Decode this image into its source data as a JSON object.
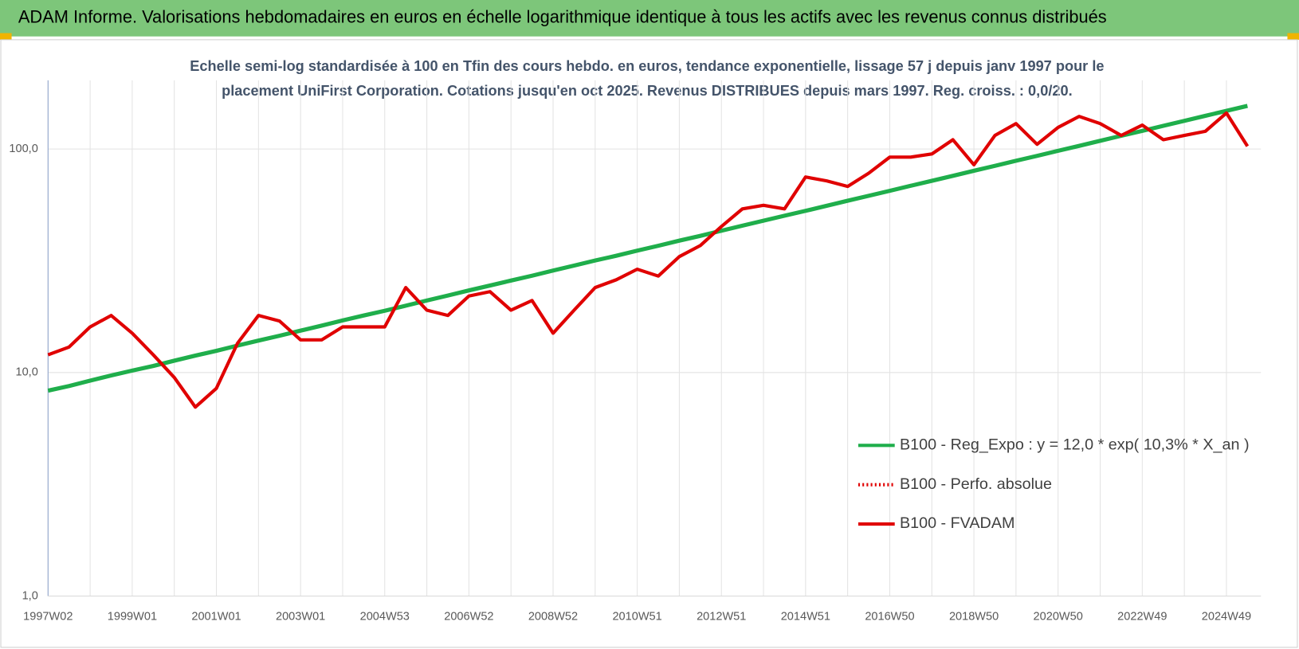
{
  "header": {
    "title": "ADAM Informe. Valorisations hebdomadaires en euros en échelle logarithmique identique à tous les actifs avec les revenus connus distribués"
  },
  "chart_data": {
    "type": "line",
    "subtitle": [
      "Echelle semi-log standardisée à 100 en Tfin des cours hebdo. en euros, tendance exponentielle, lissage 57 j depuis janv 1997 pour le",
      "placement UniFirst Corporation. Cotations jusqu'en oct 2025. Revenus DISTRIBUES depuis mars 1997.  Reg. croiss. : 0,0/20."
    ],
    "categories": [
      "1997W02",
      null,
      null,
      null,
      "1999W01",
      null,
      null,
      null,
      "2001W01",
      null,
      null,
      null,
      "2003W01",
      null,
      null,
      null,
      "2004W53",
      null,
      null,
      null,
      "2006W52",
      null,
      null,
      null,
      "2008W52",
      null,
      null,
      null,
      "2010W51",
      null,
      null,
      null,
      "2012W51",
      null,
      null,
      null,
      "2014W51",
      null,
      null,
      null,
      "2016W50",
      null,
      null,
      null,
      "2018W50",
      null,
      null,
      null,
      "2020W50",
      null,
      null,
      null,
      "2022W49",
      null,
      null,
      null,
      "2024W49",
      null
    ],
    "series": [
      {
        "name": "B100 - Reg_Expo : y = 12,0 * exp( 10,3% *  X_an )",
        "color": "#1fae4b",
        "style": "solid",
        "values": [
          8.3,
          8.7,
          9.2,
          9.7,
          10.2,
          10.7,
          11.3,
          11.9,
          12.5,
          13.2,
          13.9,
          14.6,
          15.4,
          16.2,
          17.1,
          18.0,
          18.9,
          19.9,
          21.0,
          22.1,
          23.3,
          24.5,
          25.8,
          27.1,
          28.6,
          30.1,
          31.7,
          33.3,
          35.1,
          36.9,
          38.9,
          40.9,
          43.1,
          45.4,
          47.8,
          50.3,
          52.9,
          55.7,
          58.7,
          61.8,
          65.0,
          68.5,
          72.1,
          75.9,
          79.9,
          84.1,
          88.6,
          93.2,
          98.2,
          103.3,
          108.8,
          114.6,
          120.6,
          127.0,
          133.7,
          140.8,
          148.2,
          156.0
        ]
      },
      {
        "name": "B100 - Perfo. absolue",
        "color": "#e00000",
        "style": "dotted",
        "values": [
          null,
          null,
          null,
          null,
          null,
          null,
          null,
          null,
          null,
          null,
          null,
          null,
          null,
          null,
          null,
          null,
          null,
          null,
          null,
          null,
          null,
          null,
          null,
          null,
          null,
          null,
          null,
          null,
          null,
          null,
          null,
          null,
          null,
          null,
          null,
          null,
          null,
          null,
          null,
          null,
          null,
          null,
          null,
          null,
          null,
          null,
          null,
          null,
          null,
          null,
          null,
          null,
          null,
          null,
          null,
          null,
          null,
          null
        ]
      },
      {
        "name": "B100 - FVADAM",
        "color": "#e00000",
        "style": "solid",
        "values": [
          12,
          13,
          16,
          18,
          15,
          12,
          9.5,
          7,
          8.5,
          13.5,
          18,
          17,
          14,
          14,
          16,
          16,
          16,
          24,
          19,
          18,
          22,
          23,
          19,
          21,
          15,
          19,
          24,
          26,
          29,
          27,
          33,
          37,
          45,
          54,
          56,
          54,
          75,
          72,
          68,
          78,
          92,
          92,
          95,
          110,
          85,
          115,
          130,
          105,
          125,
          140,
          130,
          115,
          128,
          110,
          115,
          120,
          145,
          103
        ]
      }
    ],
    "ylim": [
      1,
      203
    ],
    "log_scale": true,
    "yticks": [
      {
        "value": 1,
        "label": "1,0"
      },
      {
        "value": 10,
        "label": "10,0"
      },
      {
        "value": 100,
        "label": "100,0"
      }
    ],
    "grid": true,
    "legend": "lower right"
  }
}
